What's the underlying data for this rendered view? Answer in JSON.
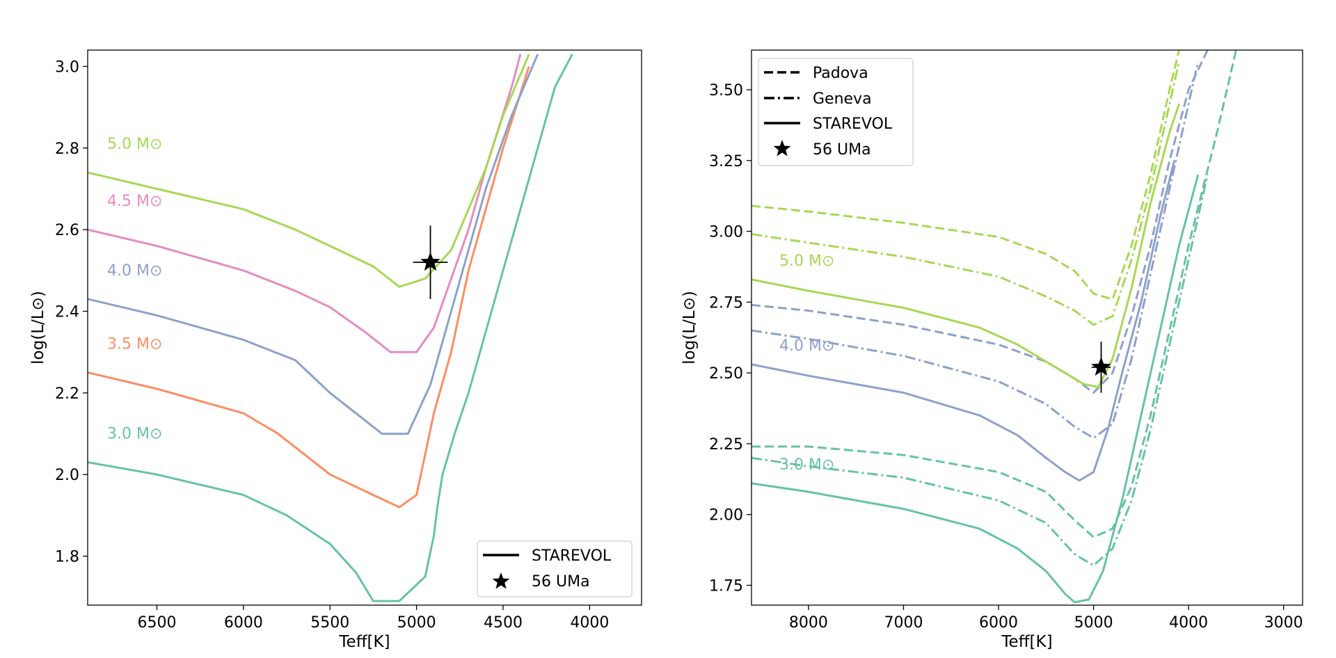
{
  "chart_data": [
    {
      "type": "line",
      "xlabel": "Teff[K]",
      "ylabel": "log(L/L⊙)",
      "xlim": [
        6900,
        3700
      ],
      "ylim": [
        1.68,
        3.04
      ],
      "xticks": [
        "6500",
        "6000",
        "5500",
        "5000",
        "4500",
        "4000"
      ],
      "yticks": [
        "1.8",
        "2.0",
        "2.2",
        "2.4",
        "2.6",
        "2.8",
        "3.0"
      ],
      "legend": {
        "position": "lower-right",
        "entries": [
          {
            "label": "STAREVOL",
            "marker": "solid-line"
          },
          {
            "label": "56 UMa",
            "marker": "star"
          }
        ]
      },
      "star": {
        "label": "56 UMa",
        "teff": 4920,
        "logL": 2.52,
        "teff_err": 100,
        "logL_err": 0.09
      },
      "series": [
        {
          "name": "3.0 M⊙",
          "model": "STAREVOL",
          "color": "#66c2a5",
          "points": [
            [
              6900,
              2.03
            ],
            [
              6500,
              2.0
            ],
            [
              6000,
              1.95
            ],
            [
              5750,
              1.9
            ],
            [
              5500,
              1.83
            ],
            [
              5350,
              1.76
            ],
            [
              5250,
              1.69
            ],
            [
              5100,
              1.69
            ],
            [
              4950,
              1.75
            ],
            [
              4900,
              1.85
            ],
            [
              4880,
              1.92
            ],
            [
              4850,
              2.0
            ],
            [
              4780,
              2.1
            ],
            [
              4700,
              2.2
            ],
            [
              4600,
              2.35
            ],
            [
              4500,
              2.5
            ],
            [
              4400,
              2.65
            ],
            [
              4300,
              2.8
            ],
            [
              4200,
              2.95
            ],
            [
              4100,
              3.03
            ]
          ]
        },
        {
          "name": "3.5 M⊙",
          "model": "STAREVOL",
          "color": "#fc8d62",
          "points": [
            [
              6900,
              2.25
            ],
            [
              6500,
              2.21
            ],
            [
              6000,
              2.15
            ],
            [
              5800,
              2.1
            ],
            [
              5500,
              2.0
            ],
            [
              5250,
              1.95
            ],
            [
              5100,
              1.92
            ],
            [
              5000,
              1.95
            ],
            [
              4950,
              2.05
            ],
            [
              4900,
              2.15
            ],
            [
              4800,
              2.3
            ],
            [
              4700,
              2.5
            ],
            [
              4600,
              2.65
            ],
            [
              4500,
              2.8
            ],
            [
              4350,
              3.0
            ]
          ]
        },
        {
          "name": "4.0 M⊙",
          "model": "STAREVOL",
          "color": "#8da0cb",
          "points": [
            [
              6900,
              2.43
            ],
            [
              6500,
              2.39
            ],
            [
              6000,
              2.33
            ],
            [
              5700,
              2.28
            ],
            [
              5500,
              2.2
            ],
            [
              5350,
              2.15
            ],
            [
              5200,
              2.1
            ],
            [
              5050,
              2.1
            ],
            [
              4920,
              2.22
            ],
            [
              4800,
              2.4
            ],
            [
              4700,
              2.55
            ],
            [
              4600,
              2.7
            ],
            [
              4450,
              2.88
            ],
            [
              4300,
              3.03
            ]
          ]
        },
        {
          "name": "4.5 M⊙",
          "model": "STAREVOL",
          "color": "#e78ac3",
          "points": [
            [
              6900,
              2.6
            ],
            [
              6500,
              2.56
            ],
            [
              6000,
              2.5
            ],
            [
              5700,
              2.45
            ],
            [
              5500,
              2.41
            ],
            [
              5300,
              2.35
            ],
            [
              5150,
              2.3
            ],
            [
              5000,
              2.3
            ],
            [
              4900,
              2.36
            ],
            [
              4800,
              2.48
            ],
            [
              4700,
              2.6
            ],
            [
              4600,
              2.75
            ],
            [
              4450,
              2.95
            ],
            [
              4400,
              3.03
            ]
          ]
        },
        {
          "name": "5.0 M⊙",
          "model": "STAREVOL",
          "color": "#a6d854",
          "points": [
            [
              6900,
              2.74
            ],
            [
              6500,
              2.7
            ],
            [
              6000,
              2.65
            ],
            [
              5700,
              2.6
            ],
            [
              5500,
              2.56
            ],
            [
              5250,
              2.51
            ],
            [
              5100,
              2.46
            ],
            [
              4950,
              2.48
            ],
            [
              4800,
              2.55
            ],
            [
              4700,
              2.65
            ],
            [
              4600,
              2.75
            ],
            [
              4500,
              2.88
            ],
            [
              4350,
              3.03
            ]
          ]
        }
      ]
    },
    {
      "type": "line",
      "xlabel": "Teff[K]",
      "ylabel": "log(L/L⊙)",
      "xlim": [
        8600,
        2800
      ],
      "ylim": [
        1.68,
        3.64
      ],
      "xticks": [
        "8000",
        "7000",
        "6000",
        "5000",
        "4000",
        "3000"
      ],
      "yticks": [
        "1.75",
        "2.00",
        "2.25",
        "2.50",
        "2.75",
        "3.00",
        "3.25",
        "3.50"
      ],
      "legend": {
        "position": "top-left",
        "entries": [
          {
            "label": "Padova",
            "marker": "dashed-line"
          },
          {
            "label": "Geneva",
            "marker": "dashdot-line"
          },
          {
            "label": "STAREVOL",
            "marker": "solid-line"
          },
          {
            "label": "56 UMa",
            "marker": "star"
          }
        ]
      },
      "star": {
        "label": "56 UMa",
        "teff": 4920,
        "logL": 2.52,
        "teff_err": 100,
        "logL_err": 0.09
      },
      "series": [
        {
          "name": "3.0 M⊙",
          "model": "Padova",
          "color": "#66c2a5",
          "points": [
            [
              8600,
              2.24
            ],
            [
              8000,
              2.24
            ],
            [
              7000,
              2.21
            ],
            [
              6000,
              2.15
            ],
            [
              5500,
              2.08
            ],
            [
              5200,
              1.98
            ],
            [
              5000,
              1.92
            ],
            [
              4800,
              1.95
            ],
            [
              4600,
              2.1
            ],
            [
              4400,
              2.35
            ],
            [
              4200,
              2.65
            ],
            [
              4000,
              2.95
            ],
            [
              3700,
              3.35
            ],
            [
              3500,
              3.64
            ]
          ]
        },
        {
          "name": "3.0 M⊙",
          "model": "Geneva",
          "color": "#66c2a5",
          "points": [
            [
              8600,
              2.2
            ],
            [
              8000,
              2.17
            ],
            [
              7000,
              2.13
            ],
            [
              6000,
              2.05
            ],
            [
              5500,
              1.97
            ],
            [
              5200,
              1.86
            ],
            [
              5000,
              1.82
            ],
            [
              4800,
              1.88
            ],
            [
              4600,
              2.05
            ],
            [
              4400,
              2.3
            ],
            [
              4200,
              2.6
            ],
            [
              4000,
              2.9
            ],
            [
              3800,
              3.2
            ]
          ]
        },
        {
          "name": "3.0 M⊙",
          "model": "STAREVOL",
          "color": "#66c2a5",
          "points": [
            [
              8600,
              2.11
            ],
            [
              8000,
              2.08
            ],
            [
              7000,
              2.02
            ],
            [
              6200,
              1.95
            ],
            [
              5800,
              1.88
            ],
            [
              5500,
              1.8
            ],
            [
              5300,
              1.72
            ],
            [
              5200,
              1.69
            ],
            [
              5050,
              1.7
            ],
            [
              4900,
              1.8
            ],
            [
              4700,
              2.05
            ],
            [
              4500,
              2.35
            ],
            [
              4300,
              2.65
            ],
            [
              4100,
              2.95
            ],
            [
              3900,
              3.2
            ]
          ]
        },
        {
          "name": "4.0 M⊙",
          "model": "Padova",
          "color": "#8da0cb",
          "points": [
            [
              8600,
              2.74
            ],
            [
              8000,
              2.72
            ],
            [
              7000,
              2.67
            ],
            [
              6000,
              2.6
            ],
            [
              5500,
              2.54
            ],
            [
              5200,
              2.48
            ],
            [
              5000,
              2.43
            ],
            [
              4800,
              2.5
            ],
            [
              4600,
              2.7
            ],
            [
              4400,
              2.95
            ],
            [
              4200,
              3.25
            ],
            [
              4000,
              3.5
            ],
            [
              3800,
              3.64
            ]
          ]
        },
        {
          "name": "4.0 M⊙",
          "model": "Geneva",
          "color": "#8da0cb",
          "points": [
            [
              8600,
              2.65
            ],
            [
              8000,
              2.62
            ],
            [
              7000,
              2.56
            ],
            [
              6000,
              2.47
            ],
            [
              5500,
              2.39
            ],
            [
              5200,
              2.31
            ],
            [
              5000,
              2.27
            ],
            [
              4800,
              2.32
            ],
            [
              4600,
              2.55
            ],
            [
              4400,
              2.85
            ],
            [
              4200,
              3.15
            ],
            [
              4000,
              3.45
            ],
            [
              3900,
              3.6
            ]
          ]
        },
        {
          "name": "4.0 M⊙",
          "model": "STAREVOL",
          "color": "#8da0cb",
          "points": [
            [
              8600,
              2.53
            ],
            [
              8000,
              2.49
            ],
            [
              7000,
              2.43
            ],
            [
              6200,
              2.35
            ],
            [
              5800,
              2.28
            ],
            [
              5500,
              2.2
            ],
            [
              5300,
              2.15
            ],
            [
              5150,
              2.12
            ],
            [
              5000,
              2.15
            ],
            [
              4850,
              2.3
            ],
            [
              4700,
              2.5
            ],
            [
              4500,
              2.75
            ],
            [
              4300,
              3.05
            ],
            [
              4150,
              3.25
            ]
          ]
        },
        {
          "name": "5.0 M⊙",
          "model": "Padova",
          "color": "#a6d854",
          "points": [
            [
              8600,
              3.09
            ],
            [
              8000,
              3.07
            ],
            [
              7000,
              3.03
            ],
            [
              6000,
              2.98
            ],
            [
              5500,
              2.92
            ],
            [
              5200,
              2.86
            ],
            [
              5000,
              2.78
            ],
            [
              4800,
              2.76
            ],
            [
              4600,
              2.95
            ],
            [
              4400,
              3.2
            ],
            [
              4200,
              3.5
            ],
            [
              4100,
              3.64
            ]
          ]
        },
        {
          "name": "5.0 M⊙",
          "model": "Geneva",
          "color": "#a6d854",
          "points": [
            [
              8600,
              2.99
            ],
            [
              8000,
              2.96
            ],
            [
              7000,
              2.91
            ],
            [
              6000,
              2.84
            ],
            [
              5500,
              2.77
            ],
            [
              5200,
              2.72
            ],
            [
              5000,
              2.67
            ],
            [
              4800,
              2.7
            ],
            [
              4600,
              2.9
            ],
            [
              4400,
              3.15
            ],
            [
              4200,
              3.45
            ],
            [
              4100,
              3.6
            ]
          ]
        },
        {
          "name": "5.0 M⊙",
          "model": "STAREVOL",
          "color": "#a6d854",
          "points": [
            [
              8600,
              2.83
            ],
            [
              8000,
              2.79
            ],
            [
              7000,
              2.73
            ],
            [
              6200,
              2.66
            ],
            [
              5800,
              2.6
            ],
            [
              5500,
              2.54
            ],
            [
              5300,
              2.5
            ],
            [
              5100,
              2.46
            ],
            [
              4950,
              2.45
            ],
            [
              4800,
              2.55
            ],
            [
              4600,
              2.8
            ],
            [
              4400,
              3.1
            ],
            [
              4200,
              3.35
            ],
            [
              4100,
              3.45
            ]
          ]
        }
      ]
    }
  ]
}
